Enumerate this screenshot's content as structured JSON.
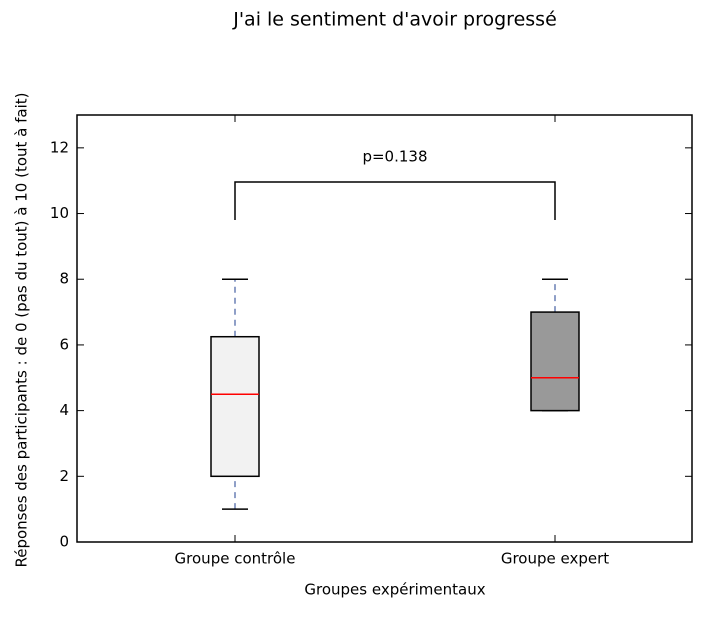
{
  "chart_data": {
    "type": "box",
    "title": "J'ai le sentiment d'avoir progressé",
    "x_label": "Groupes expérimentaux",
    "y_label": "Réponses des participants : de 0 (pas du tout) à 10 (tout à fait)",
    "categories": [
      "Groupe contrôle",
      "Groupe expert"
    ],
    "series": [
      {
        "name": "Groupe contrôle",
        "color": "#f2f2f2",
        "whislo": 1,
        "q1": 2,
        "med": 4.5,
        "q3": 6.25,
        "whishi": 8
      },
      {
        "name": "Groupe expert",
        "color": "#999999",
        "whislo": 4,
        "q1": 4,
        "med": 5,
        "q3": 7,
        "whishi": 8
      }
    ],
    "median_color": "#ff0000",
    "whisker_color": "#1f3f8f",
    "annotation": "p=0.138",
    "ylim": [
      0,
      13
    ],
    "yticks": [
      0,
      2,
      4,
      6,
      8,
      10,
      12
    ]
  }
}
